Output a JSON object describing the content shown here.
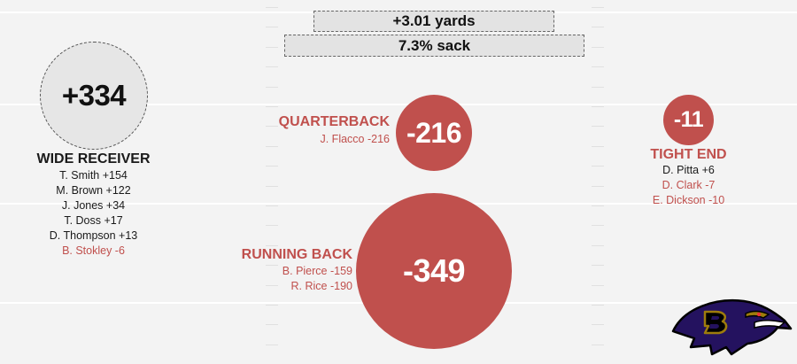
{
  "stats": {
    "yards": "+3.01 yards",
    "sack": "7.3% sack"
  },
  "positions": {
    "wide_receiver": {
      "title": "WIDE RECEIVER",
      "total": "+334",
      "total_value": 334,
      "players": [
        {
          "text": "T. Smith +154",
          "value": 154
        },
        {
          "text": "M. Brown +122",
          "value": 122
        },
        {
          "text": "J. Jones +34",
          "value": 34
        },
        {
          "text": "T. Doss +17",
          "value": 17
        },
        {
          "text": "D. Thompson +13",
          "value": 13
        },
        {
          "text": "B. Stokley -6",
          "value": -6
        }
      ]
    },
    "quarterback": {
      "title": "QUARTERBACK",
      "total": "-216",
      "total_value": -216,
      "players": [
        {
          "text": "J. Flacco -216",
          "value": -216
        }
      ]
    },
    "running_back": {
      "title": "RUNNING BACK",
      "total": "-349",
      "total_value": -349,
      "players": [
        {
          "text": "B. Pierce -159",
          "value": -159
        },
        {
          "text": "R. Rice -190",
          "value": -190
        }
      ]
    },
    "tight_end": {
      "title": "TIGHT END",
      "total": "-11",
      "total_value": -11,
      "players": [
        {
          "text": "D. Pitta +6",
          "value": 6
        },
        {
          "text": "D. Clark -7",
          "value": -7
        },
        {
          "text": "E. Dickson -10",
          "value": -10
        }
      ]
    }
  },
  "logo": {
    "name": "ravens-logo-icon",
    "colors": {
      "purple": "#24125f",
      "gold": "#9e7c0c",
      "black": "#000000"
    }
  },
  "colors": {
    "negative": "#c0504d",
    "positive_fill": "#e6e6e6",
    "field": "#f3f3f3"
  }
}
